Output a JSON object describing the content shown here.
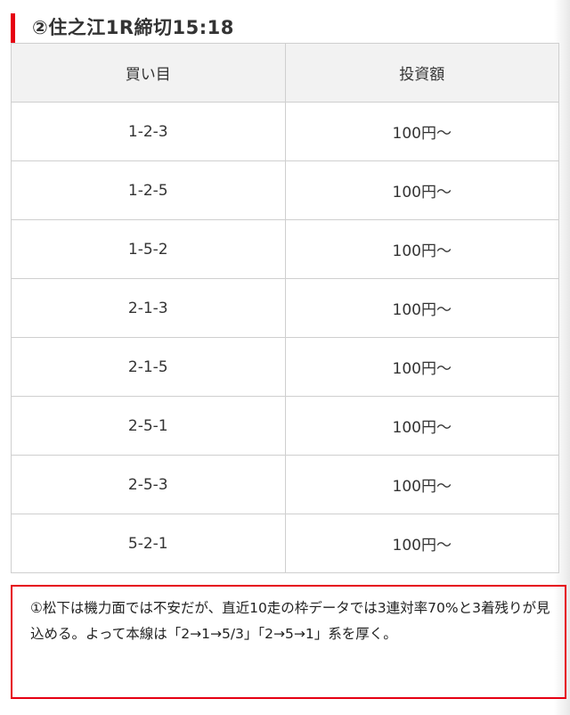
{
  "heading": "②住之江1R締切15:18",
  "table": {
    "headers": [
      "買い目",
      "投資額"
    ],
    "rows": [
      [
        "1-2-3",
        "100円〜"
      ],
      [
        "1-2-5",
        "100円〜"
      ],
      [
        "1-5-2",
        "100円〜"
      ],
      [
        "2-1-3",
        "100円〜"
      ],
      [
        "2-1-5",
        "100円〜"
      ],
      [
        "2-5-1",
        "100円〜"
      ],
      [
        "2-5-3",
        "100円〜"
      ],
      [
        "5-2-1",
        "100円〜"
      ]
    ]
  },
  "note": "①松下は機力面では不安だが、直近10走の枠データでは3連対率70%と3着残りが見込める。よって本線は「2→1→5/3」「2→5→1」系を厚く。",
  "colors": {
    "accent": "#e60012",
    "header_bg": "#f2f2f2",
    "border": "#cfcfcf"
  }
}
